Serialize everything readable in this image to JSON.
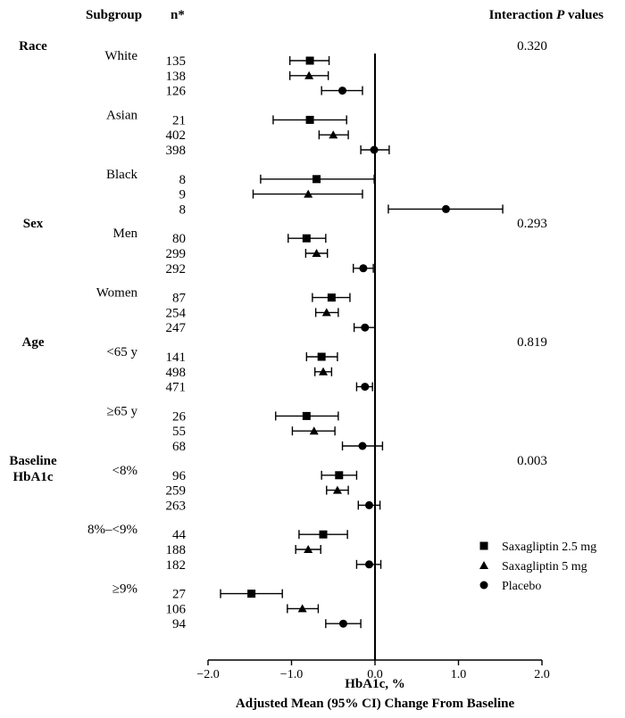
{
  "chart_data": {
    "type": "forest",
    "header": {
      "subgroup": "Subgroup",
      "n": "n*",
      "pvalues_prefix": "Interaction ",
      "pvalues_italic": "P",
      "pvalues_suffix": " values"
    },
    "xlabel": [
      "HbA1c, %",
      "Adjusted Mean (95% CI) Change From Baseline"
    ],
    "xlim": [
      -2.0,
      2.0
    ],
    "xticks": [
      "−2.0",
      "−1.0",
      "0.0",
      "1.0",
      "2.0"
    ],
    "xtick_values": [
      -2.0,
      -1.0,
      0.0,
      1.0,
      2.0
    ],
    "reference_line": 0.0,
    "legend": [
      {
        "label": "Saxagliptin 2.5 mg",
        "marker": "square"
      },
      {
        "label": "Saxagliptin 5 mg",
        "marker": "triangle"
      },
      {
        "label": "Placebo",
        "marker": "circle"
      }
    ],
    "groups": [
      {
        "name": [
          "Race"
        ],
        "p_value": "0.320",
        "subgroups": [
          {
            "label": "White",
            "rows": [
              {
                "n": "135",
                "mean": -0.78,
                "lo": -1.02,
                "hi": -0.55
              },
              {
                "n": "138",
                "mean": -0.79,
                "lo": -1.02,
                "hi": -0.56
              },
              {
                "n": "126",
                "mean": -0.39,
                "lo": -0.64,
                "hi": -0.15
              }
            ]
          },
          {
            "label": "Asian",
            "rows": [
              {
                "n": "21",
                "mean": -0.78,
                "lo": -1.22,
                "hi": -0.34
              },
              {
                "n": "402",
                "mean": -0.5,
                "lo": -0.67,
                "hi": -0.32
              },
              {
                "n": "398",
                "mean": -0.01,
                "lo": -0.17,
                "hi": 0.17
              }
            ]
          },
          {
            "label": "Black",
            "rows": [
              {
                "n": "8",
                "mean": -0.7,
                "lo": -1.37,
                "hi": -0.01
              },
              {
                "n": "9",
                "mean": -0.8,
                "lo": -1.46,
                "hi": -0.15
              },
              {
                "n": "8",
                "mean": 0.85,
                "lo": 0.16,
                "hi": 1.53
              }
            ]
          }
        ]
      },
      {
        "name": [
          "Sex"
        ],
        "p_value": "0.293",
        "subgroups": [
          {
            "label": "Men",
            "rows": [
              {
                "n": "80",
                "mean": -0.82,
                "lo": -1.04,
                "hi": -0.59
              },
              {
                "n": "299",
                "mean": -0.7,
                "lo": -0.83,
                "hi": -0.57
              },
              {
                "n": "292",
                "mean": -0.14,
                "lo": -0.26,
                "hi": -0.02
              }
            ]
          },
          {
            "label": "Women",
            "rows": [
              {
                "n": "87",
                "mean": -0.52,
                "lo": -0.75,
                "hi": -0.3
              },
              {
                "n": "254",
                "mean": -0.58,
                "lo": -0.71,
                "hi": -0.44
              },
              {
                "n": "247",
                "mean": -0.12,
                "lo": -0.25,
                "hi": 0.0
              }
            ]
          }
        ]
      },
      {
        "name": [
          "Age"
        ],
        "p_value": "0.819",
        "subgroups": [
          {
            "label": "<65 y",
            "rows": [
              {
                "n": "141",
                "mean": -0.64,
                "lo": -0.82,
                "hi": -0.45
              },
              {
                "n": "498",
                "mean": -0.62,
                "lo": -0.72,
                "hi": -0.52
              },
              {
                "n": "471",
                "mean": -0.12,
                "lo": -0.22,
                "hi": -0.03
              }
            ]
          },
          {
            "label": "≥65 y",
            "rows": [
              {
                "n": "26",
                "mean": -0.82,
                "lo": -1.19,
                "hi": -0.44
              },
              {
                "n": "55",
                "mean": -0.73,
                "lo": -0.99,
                "hi": -0.48
              },
              {
                "n": "68",
                "mean": -0.15,
                "lo": -0.39,
                "hi": 0.09
              }
            ]
          }
        ]
      },
      {
        "name": [
          "Baseline",
          "HbA1c"
        ],
        "p_value": "0.003",
        "subgroups": [
          {
            "label": "<8%",
            "rows": [
              {
                "n": "96",
                "mean": -0.43,
                "lo": -0.64,
                "hi": -0.22
              },
              {
                "n": "259",
                "mean": -0.45,
                "lo": -0.58,
                "hi": -0.32
              },
              {
                "n": "263",
                "mean": -0.07,
                "lo": -0.2,
                "hi": 0.06
              }
            ]
          },
          {
            "label": "8%–<9%",
            "rows": [
              {
                "n": "44",
                "mean": -0.62,
                "lo": -0.91,
                "hi": -0.33
              },
              {
                "n": "188",
                "mean": -0.8,
                "lo": -0.95,
                "hi": -0.65
              },
              {
                "n": "182",
                "mean": -0.07,
                "lo": -0.22,
                "hi": 0.07
              }
            ]
          },
          {
            "label": "≥9%",
            "rows": [
              {
                "n": "27",
                "mean": -1.48,
                "lo": -1.85,
                "hi": -1.11
              },
              {
                "n": "106",
                "mean": -0.87,
                "lo": -1.05,
                "hi": -0.68
              },
              {
                "n": "94",
                "mean": -0.38,
                "lo": -0.59,
                "hi": -0.17
              }
            ]
          }
        ]
      }
    ]
  }
}
